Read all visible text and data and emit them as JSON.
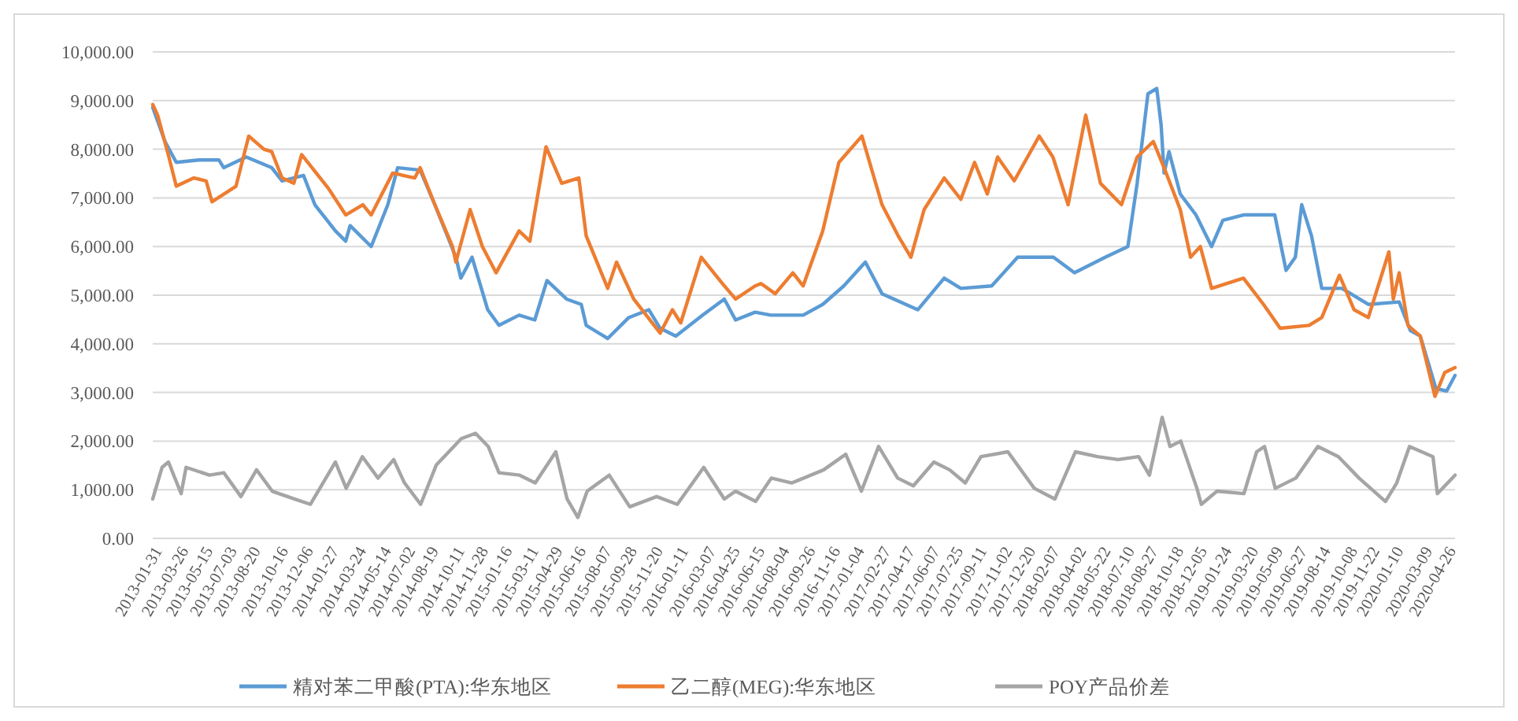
{
  "chart_data": {
    "type": "line",
    "legend": "bottom",
    "grid": "y",
    "line_style": "solid",
    "marker": "none",
    "xlim": [
      "2013-01-31",
      "2020-05-13"
    ],
    "xticks": [
      "2013-01-31",
      "2013-03-26",
      "2013-05-15",
      "2013-07-03",
      "2013-08-20",
      "2013-10-16",
      "2013-12-06",
      "2014-01-27",
      "2014-03-24",
      "2014-05-14",
      "2014-07-02",
      "2014-08-19",
      "2014-10-11",
      "2014-11-28",
      "2015-01-16",
      "2015-03-11",
      "2015-04-29",
      "2015-06-16",
      "2015-08-07",
      "2015-09-28",
      "2015-11-20",
      "2016-01-11",
      "2016-03-07",
      "2016-04-25",
      "2016-06-15",
      "2016-08-04",
      "2016-09-26",
      "2016-11-16",
      "2017-01-04",
      "2017-02-27",
      "2017-04-17",
      "2017-06-07",
      "2017-07-25",
      "2017-09-11",
      "2017-11-02",
      "2017-12-20",
      "2018-02-07",
      "2018-04-02",
      "2018-05-22",
      "2018-07-10",
      "2018-08-27",
      "2018-10-18",
      "2018-12-05",
      "2019-01-24",
      "2019-03-20",
      "2019-05-09",
      "2019-06-27",
      "2019-08-14",
      "2019-10-08",
      "2019-11-22",
      "2020-01-10",
      "2020-03-09",
      "2020-04-26"
    ],
    "ylim": [
      0,
      10000
    ],
    "yticks": [
      {
        "value": 0,
        "label": "0.00"
      },
      {
        "value": 1000,
        "label": "1,000.00"
      },
      {
        "value": 2000,
        "label": "2,000.00"
      },
      {
        "value": 3000,
        "label": "3,000.00"
      },
      {
        "value": 4000,
        "label": "4,000.00"
      },
      {
        "value": 5000,
        "label": "5,000.00"
      },
      {
        "value": 6000,
        "label": "6,000.00"
      },
      {
        "value": 7000,
        "label": "7,000.00"
      },
      {
        "value": 8000,
        "label": "8,000.00"
      },
      {
        "value": 9000,
        "label": "9,000.00"
      },
      {
        "value": 10000,
        "label": "10,000.00"
      }
    ],
    "series": [
      {
        "name": "精对苯二甲酸(PTA):华东地区",
        "color": "#5b9bd5",
        "x": [
          "2013-01-31",
          "2013-02-25",
          "2013-03-20",
          "2013-05-05",
          "2013-06-15",
          "2013-06-25",
          "2013-08-10",
          "2013-10-01",
          "2013-10-22",
          "2013-12-05",
          "2013-12-28",
          "2014-02-08",
          "2014-03-01",
          "2014-03-10",
          "2014-04-22",
          "2014-05-26",
          "2014-06-15",
          "2014-07-31",
          "2014-08-30",
          "2014-10-12",
          "2014-10-22",
          "2014-11-14",
          "2014-12-16",
          "2015-01-08",
          "2015-02-18",
          "2015-03-22",
          "2015-04-16",
          "2015-05-26",
          "2015-06-25",
          "2015-07-05",
          "2015-08-18",
          "2015-09-30",
          "2015-11-10",
          "2015-12-03",
          "2016-01-04",
          "2016-02-28",
          "2016-04-12",
          "2016-05-05",
          "2016-06-14",
          "2016-07-16",
          "2016-09-20",
          "2016-10-30",
          "2016-12-12",
          "2017-01-25",
          "2017-02-28",
          "2017-05-12",
          "2017-07-05",
          "2017-08-08",
          "2017-10-10",
          "2017-12-02",
          "2018-02-13",
          "2018-03-28",
          "2018-05-30",
          "2018-07-15",
          "2018-08-03",
          "2018-08-25",
          "2018-09-12",
          "2018-09-21",
          "2018-09-27",
          "2018-10-07",
          "2018-10-30",
          "2018-12-01",
          "2019-01-02",
          "2019-01-25",
          "2019-03-08",
          "2019-05-11",
          "2019-06-03",
          "2019-06-22",
          "2019-07-05",
          "2019-07-25",
          "2019-08-15",
          "2019-09-25",
          "2019-11-18",
          "2020-01-20",
          "2020-02-12",
          "2020-03-03",
          "2020-04-04",
          "2020-04-26",
          "2020-05-13"
        ],
        "values": [
          8860,
          8160,
          7730,
          7780,
          7780,
          7620,
          7840,
          7620,
          7350,
          7460,
          6860,
          6320,
          6110,
          6430,
          6000,
          6860,
          7620,
          7570,
          6860,
          5780,
          5350,
          5780,
          4700,
          4380,
          4590,
          4490,
          5300,
          4920,
          4810,
          4380,
          4110,
          4540,
          4700,
          4320,
          4160,
          4590,
          4920,
          4490,
          4650,
          4590,
          4590,
          4810,
          5190,
          5680,
          5030,
          4700,
          5350,
          5140,
          5190,
          5780,
          5780,
          5460,
          5780,
          6000,
          7300,
          9140,
          9250,
          8490,
          7510,
          7950,
          7080,
          6650,
          6000,
          6540,
          6650,
          6650,
          5510,
          5780,
          6860,
          6220,
          5140,
          5140,
          4810,
          4860,
          4270,
          4160,
          3080,
          3030,
          3350
        ]
      },
      {
        "name": "乙二醇(MEG):华东地区",
        "color": "#ed7d31",
        "x": [
          "2013-01-31",
          "2013-02-10",
          "2013-03-05",
          "2013-03-20",
          "2013-04-25",
          "2013-05-20",
          "2013-06-01",
          "2013-07-20",
          "2013-08-15",
          "2013-09-15",
          "2013-10-01",
          "2013-10-22",
          "2013-11-15",
          "2013-12-01",
          "2014-01-25",
          "2014-03-01",
          "2014-04-05",
          "2014-04-22",
          "2014-06-05",
          "2014-07-20",
          "2014-07-31",
          "2014-08-30",
          "2014-10-05",
          "2014-10-12",
          "2014-11-10",
          "2014-12-05",
          "2015-01-02",
          "2015-02-18",
          "2015-03-12",
          "2015-04-14",
          "2015-05-16",
          "2015-06-20",
          "2015-07-05",
          "2015-08-18",
          "2015-09-05",
          "2015-10-10",
          "2015-12-03",
          "2015-12-28",
          "2016-01-14",
          "2016-02-25",
          "2016-04-08",
          "2016-05-05",
          "2016-06-14",
          "2016-06-26",
          "2016-07-25",
          "2016-08-30",
          "2016-09-20",
          "2016-10-30",
          "2016-12-02",
          "2017-01-18",
          "2017-02-28",
          "2017-04-02",
          "2017-04-28",
          "2017-05-25",
          "2017-07-05",
          "2017-08-08",
          "2017-09-05",
          "2017-10-01",
          "2017-10-22",
          "2017-11-25",
          "2018-01-15",
          "2018-02-12",
          "2018-03-15",
          "2018-04-20",
          "2018-05-20",
          "2018-07-02",
          "2018-08-03",
          "2018-09-05",
          "2018-09-27",
          "2018-10-30",
          "2018-11-20",
          "2018-12-10",
          "2019-01-02",
          "2019-03-08",
          "2019-04-18",
          "2019-05-22",
          "2019-07-20",
          "2019-08-15",
          "2019-09-20",
          "2019-10-20",
          "2019-11-18",
          "2019-12-30",
          "2020-01-08",
          "2020-01-20",
          "2020-02-07",
          "2020-03-03",
          "2020-04-02",
          "2020-04-22",
          "2020-05-13"
        ],
        "values": [
          8920,
          8700,
          7840,
          7240,
          7410,
          7350,
          6920,
          7240,
          8270,
          8000,
          7950,
          7410,
          7300,
          7890,
          7190,
          6650,
          6860,
          6650,
          7510,
          7410,
          7620,
          6860,
          6000,
          5680,
          6760,
          6000,
          5460,
          6320,
          6110,
          8050,
          7300,
          7410,
          6220,
          5140,
          5680,
          4920,
          4220,
          4700,
          4430,
          5780,
          5240,
          4920,
          5190,
          5240,
          5030,
          5460,
          5190,
          6320,
          7730,
          8270,
          6860,
          6220,
          5780,
          6760,
          7410,
          6970,
          7730,
          7080,
          7840,
          7350,
          8270,
          7840,
          6860,
          8700,
          7300,
          6860,
          7840,
          8160,
          7620,
          6760,
          5780,
          6000,
          5140,
          5350,
          4810,
          4320,
          4380,
          4540,
          5410,
          4700,
          4540,
          5890,
          4920,
          5460,
          4380,
          4160,
          2920,
          3410,
          3510
        ]
      },
      {
        "name": "POY产品价差",
        "color": "#a5a5a5",
        "x": [
          "2013-01-31",
          "2013-02-19",
          "2013-03-04",
          "2013-03-30",
          "2013-04-09",
          "2013-05-27",
          "2013-06-25",
          "2013-07-30",
          "2013-08-31",
          "2013-10-02",
          "2013-11-16",
          "2013-12-19",
          "2014-02-08",
          "2014-03-02",
          "2014-04-04",
          "2014-05-06",
          "2014-06-07",
          "2014-06-29",
          "2014-08-01",
          "2014-09-02",
          "2014-10-23",
          "2014-11-21",
          "2014-12-17",
          "2015-01-08",
          "2015-02-19",
          "2015-03-23",
          "2015-05-04",
          "2015-05-27",
          "2015-06-18",
          "2015-07-07",
          "2015-08-21",
          "2015-10-02",
          "2015-11-26",
          "2016-01-07",
          "2016-03-01",
          "2016-04-12",
          "2016-05-05",
          "2016-06-15",
          "2016-07-17",
          "2016-08-28",
          "2016-11-01",
          "2016-12-16",
          "2017-01-17",
          "2017-02-21",
          "2017-04-01",
          "2017-05-03",
          "2017-06-14",
          "2017-07-16",
          "2017-08-17",
          "2017-09-18",
          "2017-11-12",
          "2018-01-05",
          "2018-02-16",
          "2018-03-30",
          "2018-05-14",
          "2018-06-25",
          "2018-08-06",
          "2018-08-28",
          "2018-09-23",
          "2018-10-09",
          "2018-10-31",
          "2018-12-03",
          "2018-12-12",
          "2019-01-13",
          "2019-03-09",
          "2019-04-04",
          "2019-04-20",
          "2019-05-12",
          "2019-06-23",
          "2019-08-07",
          "2019-09-18",
          "2019-10-30",
          "2019-12-23",
          "2020-01-15",
          "2020-02-10",
          "2020-03-06",
          "2020-03-29",
          "2020-04-07",
          "2020-05-13"
        ],
        "values": [
          810,
          1460,
          1570,
          920,
          1460,
          1300,
          1350,
          860,
          1410,
          970,
          810,
          700,
          1570,
          1030,
          1680,
          1240,
          1620,
          1140,
          700,
          1510,
          2050,
          2160,
          1890,
          1350,
          1300,
          1140,
          1780,
          810,
          430,
          970,
          1300,
          650,
          860,
          700,
          1460,
          810,
          970,
          760,
          1240,
          1140,
          1410,
          1730,
          970,
          1890,
          1240,
          1080,
          1570,
          1410,
          1140,
          1680,
          1780,
          1030,
          810,
          1780,
          1680,
          1620,
          1680,
          1300,
          2490,
          1890,
          2000,
          1030,
          700,
          970,
          920,
          1780,
          1890,
          1030,
          1240,
          1890,
          1680,
          1240,
          760,
          1140,
          1890,
          1780,
          1680,
          920,
          1300
        ]
      }
    ]
  }
}
